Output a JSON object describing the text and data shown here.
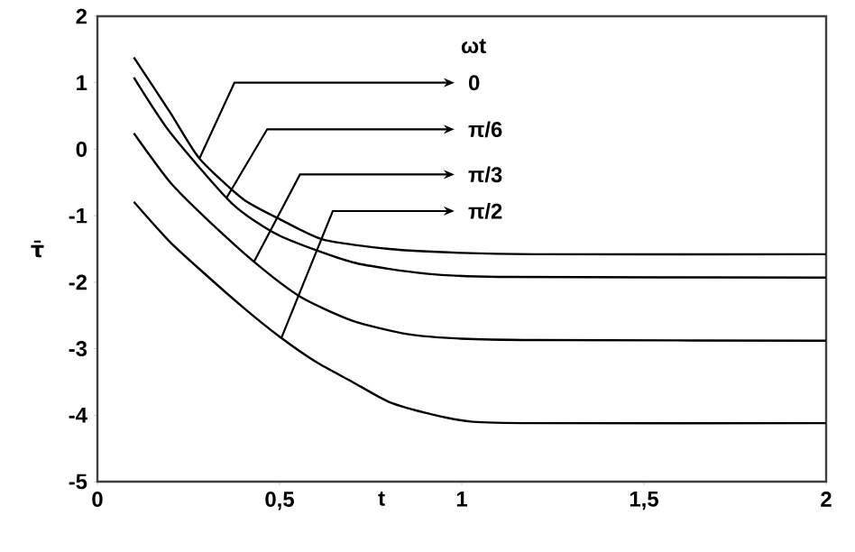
{
  "chart_data": {
    "type": "line",
    "xlabel": "t",
    "ylabel": "τ̄",
    "legend_title": "ωt",
    "xlim": [
      0,
      2
    ],
    "ylim": [
      -5,
      2
    ],
    "xticks": [
      0,
      {
        "value": 0.5,
        "label": "0,5"
      },
      1,
      {
        "value": 1.5,
        "label": "1,5"
      },
      2
    ],
    "yticks": [
      -5,
      -4,
      -3,
      -2,
      -1,
      0,
      1,
      2
    ],
    "grid": false,
    "legend": "top",
    "marker": "none",
    "line_style": "solid",
    "series": [
      {
        "name": "0",
        "color": "#000000",
        "x": [
          0.1,
          0.2,
          0.28,
          0.4,
          0.5,
          0.62,
          0.8,
          1.0,
          1.2,
          2
        ],
        "values": [
          1.38,
          0.55,
          -0.14,
          -0.75,
          -1.05,
          -1.36,
          -1.5,
          -1.56,
          -1.58,
          -1.58
        ]
      },
      {
        "name": "π/6",
        "color": "#000000",
        "x": [
          0.1,
          0.2,
          0.37,
          0.5,
          0.7,
          0.9,
          1.1,
          2
        ],
        "values": [
          1.08,
          0.25,
          -0.82,
          -1.3,
          -1.7,
          -1.87,
          -1.92,
          -1.93
        ]
      },
      {
        "name": "π/3",
        "color": "#000000",
        "x": [
          0.1,
          0.2,
          0.3,
          0.44,
          0.56,
          0.7,
          0.85,
          1.0,
          1.2,
          2
        ],
        "values": [
          0.24,
          -0.5,
          -1.05,
          -1.74,
          -2.23,
          -2.58,
          -2.78,
          -2.85,
          -2.87,
          -2.88
        ]
      },
      {
        "name": "π/2",
        "color": "#000000",
        "x": [
          0.1,
          0.2,
          0.3,
          0.4,
          0.5,
          0.6,
          0.7,
          0.8,
          0.92,
          1.03,
          1.2,
          2
        ],
        "values": [
          -0.79,
          -1.4,
          -1.9,
          -2.38,
          -2.82,
          -3.2,
          -3.5,
          -3.8,
          -3.99,
          -4.1,
          -4.12,
          -4.12
        ]
      }
    ]
  }
}
